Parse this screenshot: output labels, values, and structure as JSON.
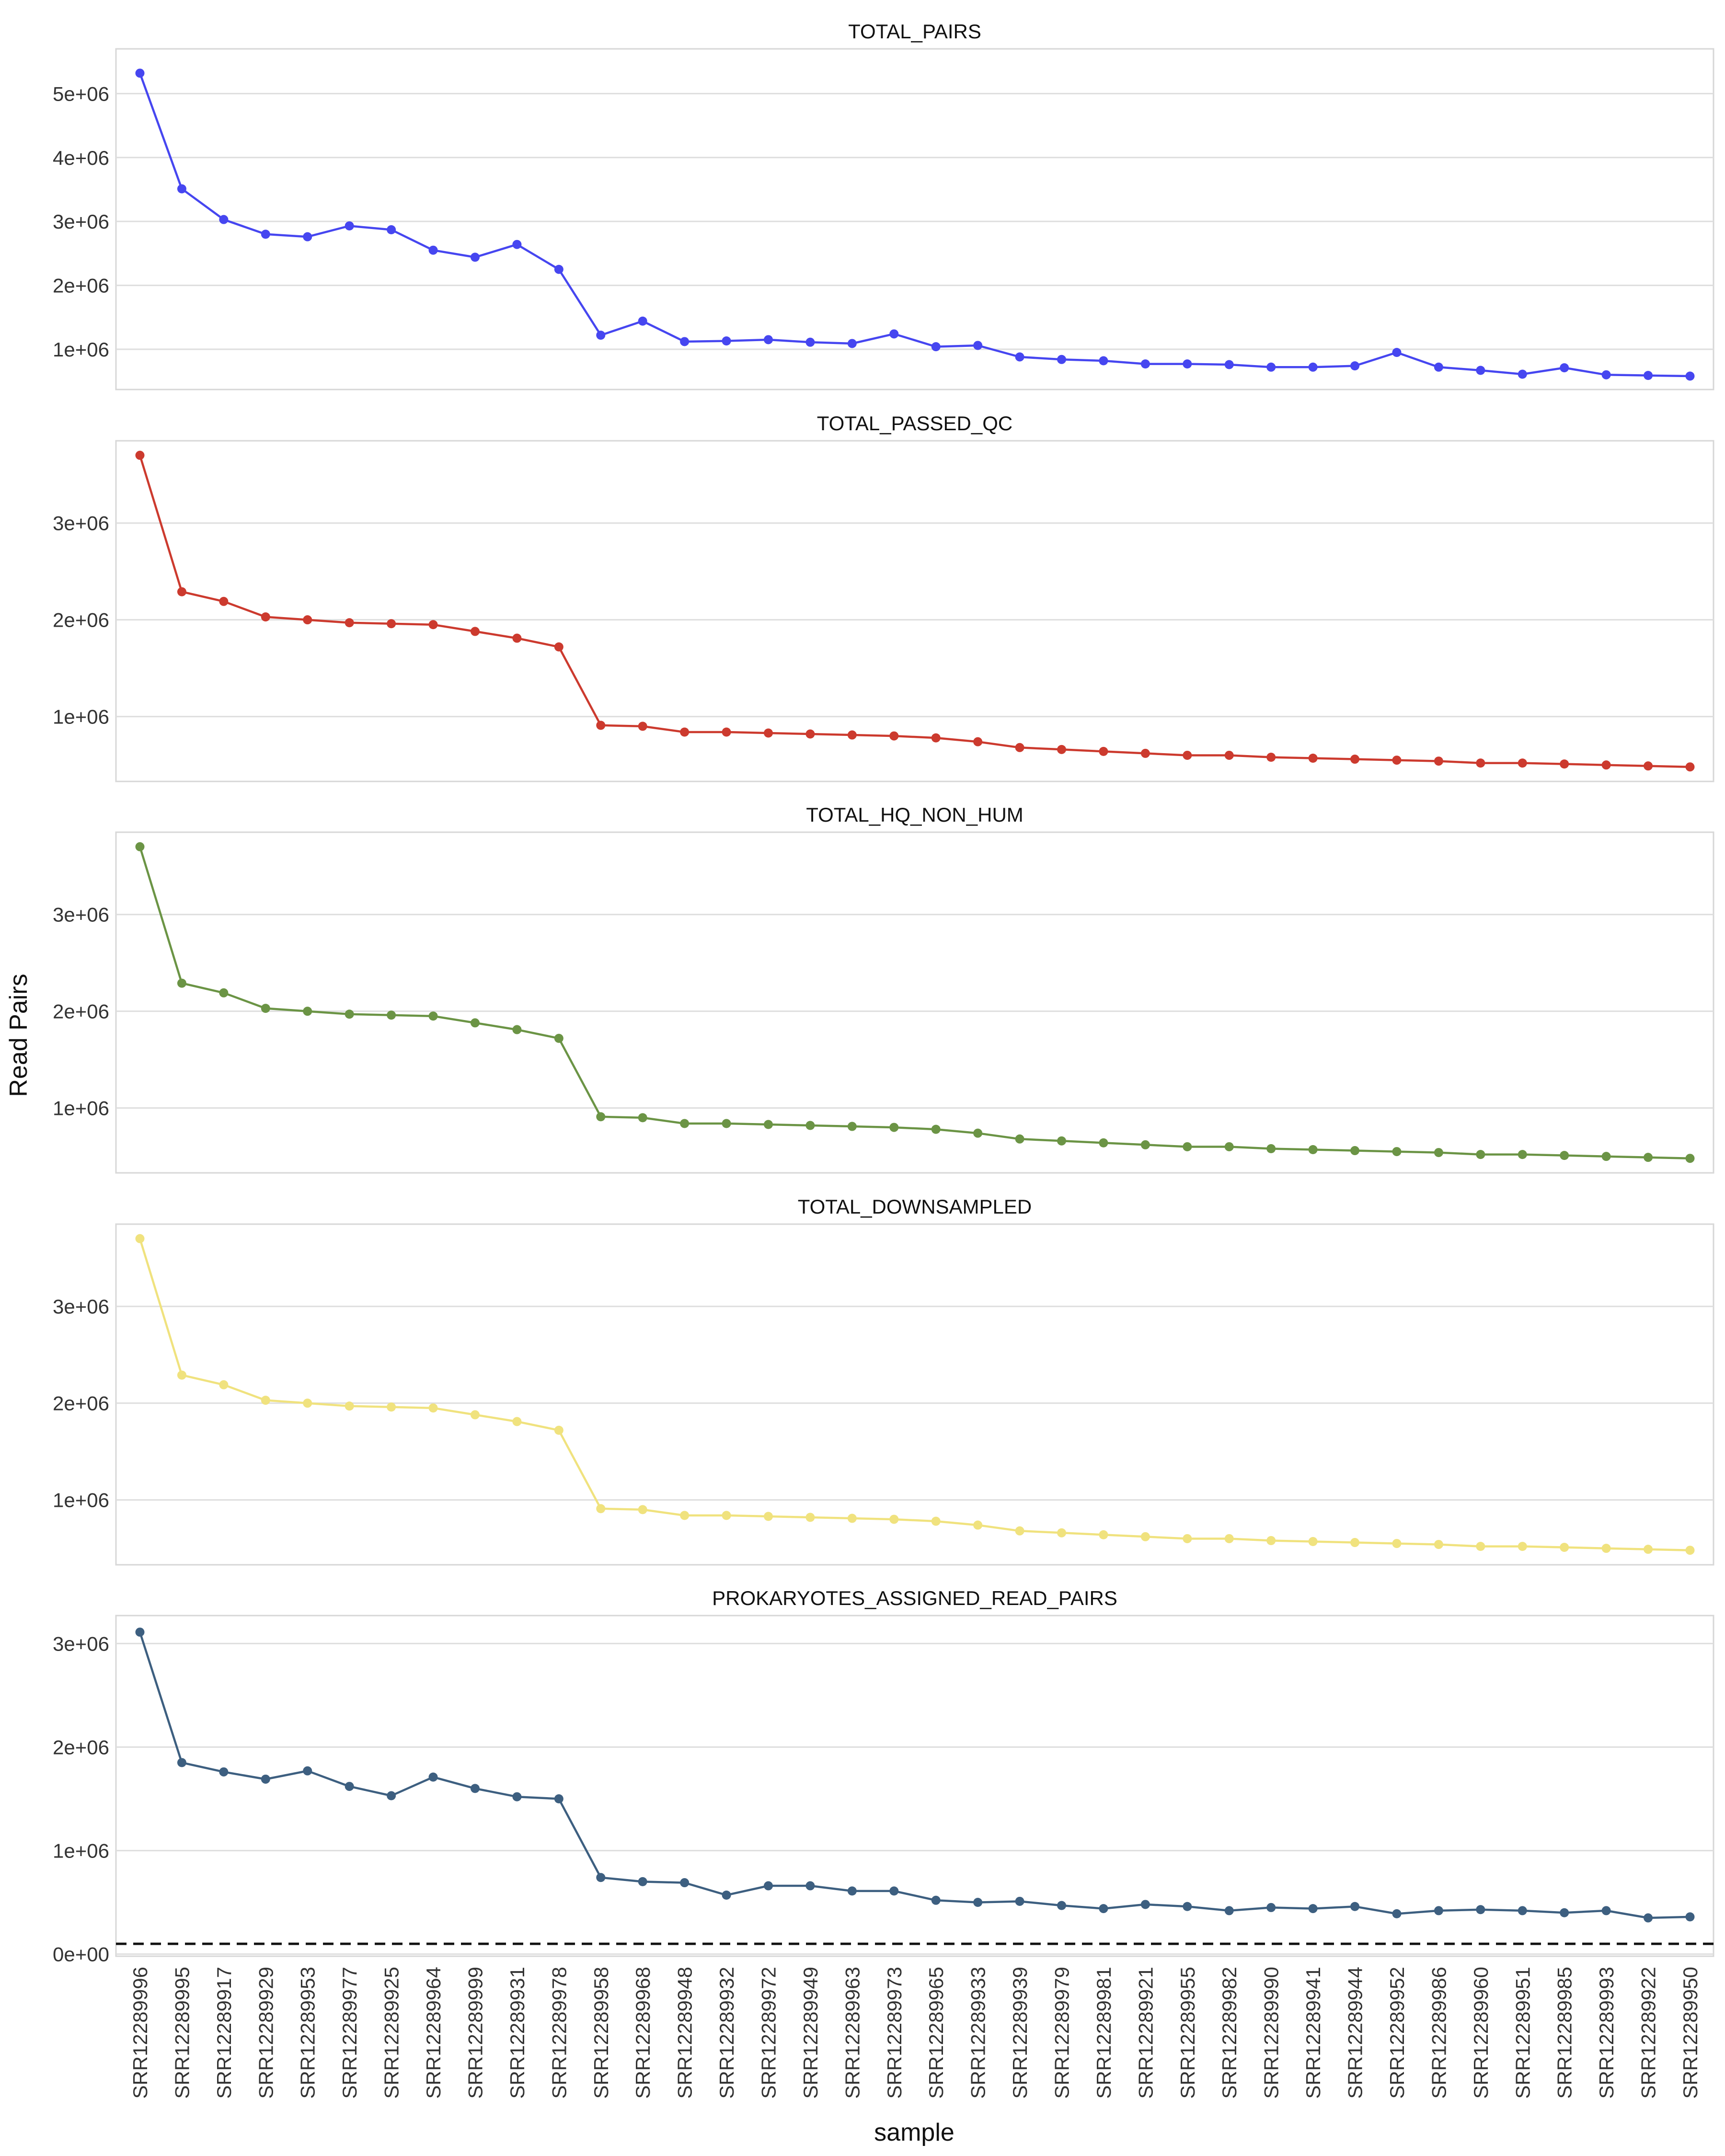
{
  "chart_data": {
    "type": "line",
    "ylabel": "Read Pairs",
    "xlabel": "sample",
    "categories": [
      "SRR12289996",
      "SRR12289995",
      "SRR12289917",
      "SRR12289929",
      "SRR12289953",
      "SRR12289977",
      "SRR12289925",
      "SRR12289964",
      "SRR12289999",
      "SRR12289931",
      "SRR12289978",
      "SRR12289958",
      "SRR12289968",
      "SRR12289948",
      "SRR12289932",
      "SRR12289972",
      "SRR12289949",
      "SRR12289963",
      "SRR12289973",
      "SRR12289965",
      "SRR12289933",
      "SRR12289939",
      "SRR12289979",
      "SRR12289981",
      "SRR12289921",
      "SRR12289955",
      "SRR12289982",
      "SRR12289990",
      "SRR12289941",
      "SRR12289944",
      "SRR12289952",
      "SRR12289986",
      "SRR12289960",
      "SRR12289951",
      "SRR12289985",
      "SRR12289993",
      "SRR12289922",
      "SRR12289950"
    ],
    "grid": true,
    "panels": [
      {
        "title": "TOTAL_PAIRS",
        "color": "#4646F0",
        "ylim": [
          370000,
          5700000
        ],
        "yticks": [
          1000000,
          2000000,
          3000000,
          4000000,
          5000000
        ],
        "ytick_labels": [
          "1e+06",
          "2e+06",
          "3e+06",
          "4e+06",
          "5e+06"
        ],
        "values": [
          5320000,
          3510000,
          3030000,
          2800000,
          2760000,
          2930000,
          2870000,
          2550000,
          2440000,
          2640000,
          2250000,
          1220000,
          1440000,
          1120000,
          1130000,
          1150000,
          1110000,
          1090000,
          1240000,
          1040000,
          1060000,
          880000,
          840000,
          820000,
          770000,
          770000,
          760000,
          720000,
          720000,
          740000,
          950000,
          720000,
          670000,
          610000,
          710000,
          600000,
          590000,
          580000
        ]
      },
      {
        "title": "TOTAL_PASSED_QC",
        "color": "#CC3A2E",
        "ylim": [
          330000,
          3850000
        ],
        "yticks": [
          1000000,
          2000000,
          3000000
        ],
        "ytick_labels": [
          "1e+06",
          "2e+06",
          "3e+06"
        ],
        "values": [
          3700000,
          2290000,
          2190000,
          2030000,
          2000000,
          1970000,
          1960000,
          1950000,
          1880000,
          1810000,
          1720000,
          910000,
          900000,
          840000,
          840000,
          830000,
          820000,
          810000,
          800000,
          780000,
          740000,
          680000,
          660000,
          640000,
          620000,
          600000,
          600000,
          580000,
          570000,
          560000,
          550000,
          540000,
          520000,
          520000,
          510000,
          500000,
          490000,
          480000
        ]
      },
      {
        "title": "TOTAL_HQ_NON_HUM",
        "color": "#6B9445",
        "ylim": [
          330000,
          3850000
        ],
        "yticks": [
          1000000,
          2000000,
          3000000
        ],
        "ytick_labels": [
          "1e+06",
          "2e+06",
          "3e+06"
        ],
        "values": [
          3700000,
          2290000,
          2190000,
          2030000,
          2000000,
          1970000,
          1960000,
          1950000,
          1880000,
          1810000,
          1720000,
          910000,
          900000,
          840000,
          840000,
          830000,
          820000,
          810000,
          800000,
          780000,
          740000,
          680000,
          660000,
          640000,
          620000,
          600000,
          600000,
          580000,
          570000,
          560000,
          550000,
          540000,
          520000,
          520000,
          510000,
          500000,
          490000,
          480000
        ]
      },
      {
        "title": "TOTAL_DOWNSAMPLED",
        "color": "#F0E27E",
        "ylim": [
          330000,
          3850000
        ],
        "yticks": [
          1000000,
          2000000,
          3000000
        ],
        "ytick_labels": [
          "1e+06",
          "2e+06",
          "3e+06"
        ],
        "values": [
          3700000,
          2290000,
          2190000,
          2030000,
          2000000,
          1970000,
          1960000,
          1950000,
          1880000,
          1810000,
          1720000,
          910000,
          900000,
          840000,
          840000,
          830000,
          820000,
          810000,
          800000,
          780000,
          740000,
          680000,
          660000,
          640000,
          620000,
          600000,
          600000,
          580000,
          570000,
          560000,
          550000,
          540000,
          520000,
          520000,
          510000,
          500000,
          490000,
          480000
        ]
      },
      {
        "title": "PROKARYOTES_ASSIGNED_READ_PAIRS",
        "color": "#3D5F80",
        "ylim": [
          -20000,
          3270000
        ],
        "yticks": [
          0,
          1000000,
          2000000,
          3000000
        ],
        "ytick_labels": [
          "0e+00",
          "1e+06",
          "2e+06",
          "3e+06"
        ],
        "reference_line": 100000,
        "values": [
          3110000,
          1850000,
          1760000,
          1690000,
          1770000,
          1620000,
          1530000,
          1710000,
          1600000,
          1520000,
          1500000,
          740000,
          700000,
          690000,
          570000,
          660000,
          660000,
          610000,
          610000,
          520000,
          500000,
          510000,
          470000,
          440000,
          480000,
          460000,
          420000,
          450000,
          440000,
          460000,
          390000,
          420000,
          430000,
          420000,
          400000,
          420000,
          350000,
          360000
        ]
      }
    ]
  }
}
